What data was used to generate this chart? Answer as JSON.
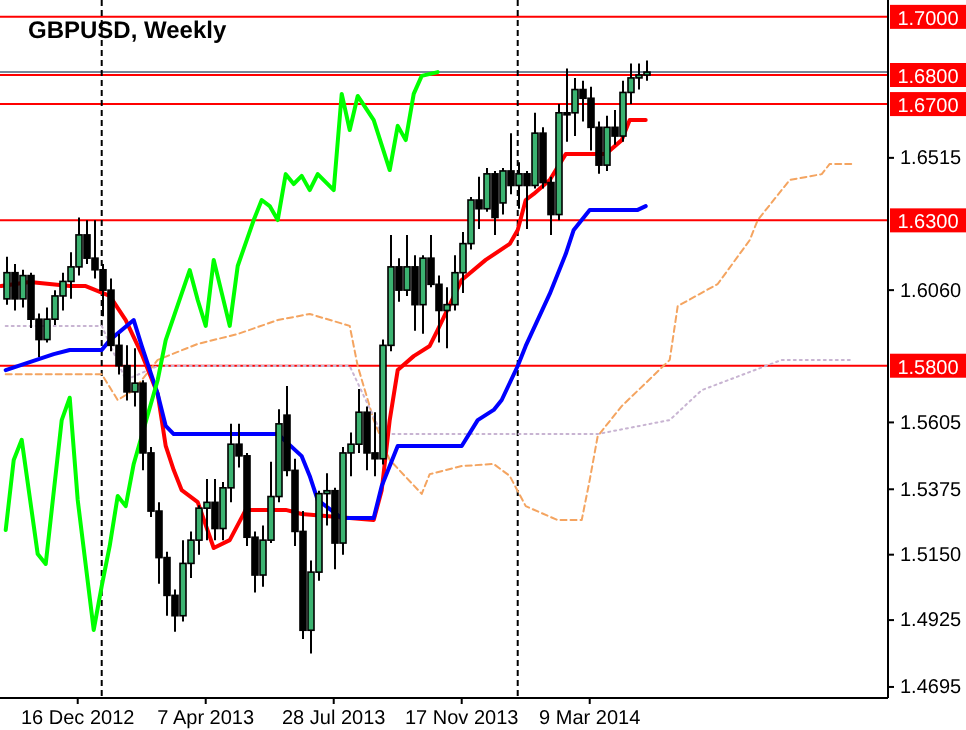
{
  "chart_data": {
    "type": "candlestick",
    "title": "GBPUSD, Weekly",
    "x": [
      "2012-10-14",
      "2012-10-21",
      "2012-10-28",
      "2012-11-04",
      "2012-11-11",
      "2012-11-18",
      "2012-11-25",
      "2012-12-02",
      "2012-12-09",
      "2012-12-16",
      "2012-12-23",
      "2012-12-30",
      "2013-01-06",
      "2013-01-13",
      "2013-01-20",
      "2013-01-27",
      "2013-02-03",
      "2013-02-10",
      "2013-02-17",
      "2013-02-24",
      "2013-03-03",
      "2013-03-10",
      "2013-03-17",
      "2013-03-24",
      "2013-03-31",
      "2013-04-07",
      "2013-04-14",
      "2013-04-21",
      "2013-04-28",
      "2013-05-05",
      "2013-05-12",
      "2013-05-19",
      "2013-05-26",
      "2013-06-02",
      "2013-06-09",
      "2013-06-16",
      "2013-06-23",
      "2013-06-30",
      "2013-07-07",
      "2013-07-14",
      "2013-07-21",
      "2013-07-28",
      "2013-08-04",
      "2013-08-11",
      "2013-08-18",
      "2013-08-25",
      "2013-09-01",
      "2013-09-08",
      "2013-09-15",
      "2013-09-22",
      "2013-09-29",
      "2013-10-06",
      "2013-10-13",
      "2013-10-20",
      "2013-10-27",
      "2013-11-03",
      "2013-11-10",
      "2013-11-17",
      "2013-11-24",
      "2013-12-01",
      "2013-12-08",
      "2013-12-15",
      "2013-12-22",
      "2013-12-29",
      "2014-01-05",
      "2014-01-12",
      "2014-01-19",
      "2014-01-26",
      "2014-02-02",
      "2014-02-09",
      "2014-02-16",
      "2014-02-23",
      "2014-03-02",
      "2014-03-09",
      "2014-03-16",
      "2014-03-23",
      "2014-03-30",
      "2014-04-06",
      "2014-04-13",
      "2014-04-20",
      "2014-04-27"
    ],
    "ohlc": [
      [
        1.603,
        1.6175,
        1.601,
        1.612
      ],
      [
        1.612,
        1.615,
        1.599,
        1.603
      ],
      [
        1.603,
        1.613,
        1.6,
        1.611
      ],
      [
        1.611,
        1.612,
        1.593,
        1.596
      ],
      [
        1.596,
        1.598,
        1.583,
        1.589
      ],
      [
        1.589,
        1.6,
        1.588,
        1.596
      ],
      [
        1.596,
        1.606,
        1.594,
        1.604
      ],
      [
        1.604,
        1.612,
        1.599,
        1.609
      ],
      [
        1.609,
        1.619,
        1.603,
        1.614
      ],
      [
        1.614,
        1.631,
        1.611,
        1.625
      ],
      [
        1.625,
        1.63,
        1.615,
        1.617
      ],
      [
        1.617,
        1.63,
        1.61,
        1.613
      ],
      [
        1.613,
        1.615,
        1.597,
        1.606
      ],
      [
        1.606,
        1.61,
        1.585,
        1.587
      ],
      [
        1.587,
        1.591,
        1.577,
        1.58
      ],
      [
        1.58,
        1.587,
        1.568,
        1.571
      ],
      [
        1.571,
        1.586,
        1.566,
        1.574
      ],
      [
        1.574,
        1.575,
        1.544,
        1.55
      ],
      [
        1.55,
        1.552,
        1.528,
        1.53
      ],
      [
        1.53,
        1.533,
        1.505,
        1.514
      ],
      [
        1.514,
        1.516,
        1.494,
        1.501
      ],
      [
        1.501,
        1.503,
        1.4885,
        1.494
      ],
      [
        1.494,
        1.52,
        1.492,
        1.512
      ],
      [
        1.512,
        1.523,
        1.507,
        1.52
      ],
      [
        1.52,
        1.532,
        1.515,
        1.531
      ],
      [
        1.531,
        1.541,
        1.52,
        1.533
      ],
      [
        1.533,
        1.541,
        1.52,
        1.524
      ],
      [
        1.524,
        1.54,
        1.52,
        1.538
      ],
      [
        1.538,
        1.56,
        1.533,
        1.553
      ],
      [
        1.553,
        1.56,
        1.545,
        1.549
      ],
      [
        1.549,
        1.55,
        1.518,
        1.521
      ],
      [
        1.521,
        1.523,
        1.502,
        1.508
      ],
      [
        1.508,
        1.525,
        1.504,
        1.52
      ],
      [
        1.52,
        1.547,
        1.519,
        1.535
      ],
      [
        1.535,
        1.565,
        1.533,
        1.56
      ],
      [
        1.563,
        1.573,
        1.542,
        1.544
      ],
      [
        1.544,
        1.548,
        1.518,
        1.523
      ],
      [
        1.523,
        1.53,
        1.486,
        1.489
      ],
      [
        1.489,
        1.513,
        1.481,
        1.509
      ],
      [
        1.509,
        1.537,
        1.506,
        1.536
      ],
      [
        1.536,
        1.543,
        1.525,
        1.537
      ],
      [
        1.537,
        1.538,
        1.51,
        1.519
      ],
      [
        1.519,
        1.552,
        1.515,
        1.55
      ],
      [
        1.55,
        1.557,
        1.542,
        1.553
      ],
      [
        1.553,
        1.572,
        1.55,
        1.564
      ],
      [
        1.564,
        1.566,
        1.544,
        1.55
      ],
      [
        1.55,
        1.564,
        1.542,
        1.548
      ],
      [
        1.548,
        1.589,
        1.546,
        1.587
      ],
      [
        1.587,
        1.625,
        1.585,
        1.614
      ],
      [
        1.614,
        1.617,
        1.602,
        1.606
      ],
      [
        1.606,
        1.625,
        1.604,
        1.614
      ],
      [
        1.614,
        1.618,
        1.592,
        1.601
      ],
      [
        1.601,
        1.618,
        1.591,
        1.617
      ],
      [
        1.617,
        1.625,
        1.607,
        1.608
      ],
      [
        1.608,
        1.611,
        1.588,
        1.599
      ],
      [
        1.599,
        1.607,
        1.586,
        1.601
      ],
      [
        1.601,
        1.618,
        1.599,
        1.612
      ],
      [
        1.612,
        1.626,
        1.605,
        1.622
      ],
      [
        1.622,
        1.638,
        1.62,
        1.637
      ],
      [
        1.637,
        1.645,
        1.627,
        1.634
      ],
      [
        1.634,
        1.648,
        1.633,
        1.646
      ],
      [
        1.646,
        1.647,
        1.625,
        1.631
      ],
      [
        1.636,
        1.648,
        1.632,
        1.647
      ],
      [
        1.647,
        1.66,
        1.639,
        1.642
      ],
      [
        1.642,
        1.65,
        1.634,
        1.646
      ],
      [
        1.646,
        1.647,
        1.627,
        1.642
      ],
      [
        1.642,
        1.667,
        1.641,
        1.66
      ],
      [
        1.66,
        1.662,
        1.641,
        1.643
      ],
      [
        1.643,
        1.645,
        1.625,
        1.632
      ],
      [
        1.632,
        1.67,
        1.63,
        1.667
      ],
      [
        1.667,
        1.6822,
        1.657,
        1.667
      ],
      [
        1.667,
        1.679,
        1.659,
        1.675
      ],
      [
        1.675,
        1.678,
        1.664,
        1.672
      ],
      [
        1.672,
        1.676,
        1.654,
        1.662
      ],
      [
        1.662,
        1.664,
        1.646,
        1.649
      ],
      [
        1.649,
        1.666,
        1.647,
        1.662
      ],
      [
        1.662,
        1.668,
        1.656,
        1.659
      ],
      [
        1.659,
        1.678,
        1.657,
        1.674
      ],
      [
        1.674,
        1.684,
        1.67,
        1.679
      ],
      [
        1.679,
        1.684,
        1.675,
        1.68
      ],
      [
        1.68,
        1.685,
        1.678,
        1.681
      ]
    ],
    "colors": [
      "#3cb371",
      "#000000",
      "#3cb371",
      "#000000",
      "#000000",
      "#3cb371",
      "#3cb371",
      "#3cb371",
      "#3cb371",
      "#3cb371",
      "#000000",
      "#000000",
      "#000000",
      "#000000",
      "#000000",
      "#000000",
      "#3cb371",
      "#000000",
      "#000000",
      "#000000",
      "#000000",
      "#000000",
      "#3cb371",
      "#3cb371",
      "#3cb371",
      "#3cb371",
      "#000000",
      "#3cb371",
      "#3cb371",
      "#000000",
      "#000000",
      "#000000",
      "#3cb371",
      "#3cb371",
      "#3cb371",
      "#000000",
      "#000000",
      "#000000",
      "#3cb371",
      "#3cb371",
      "#3cb371",
      "#000000",
      "#3cb371",
      "#3cb371",
      "#3cb371",
      "#000000",
      "#000000",
      "#3cb371",
      "#3cb371",
      "#000000",
      "#3cb371",
      "#000000",
      "#3cb371",
      "#000000",
      "#000000",
      "#3cb371",
      "#3cb371",
      "#3cb371",
      "#3cb371",
      "#000000",
      "#3cb371",
      "#000000",
      "#3cb371",
      "#000000",
      "#3cb371",
      "#000000",
      "#3cb371",
      "#000000",
      "#000000",
      "#3cb371",
      "#000000",
      "#3cb371",
      "#000000",
      "#000000",
      "#000000",
      "#3cb371",
      "#000000",
      "#3cb371",
      "#3cb371",
      "#3cb371",
      "#3cb371"
    ],
    "series": [
      {
        "type": "line",
        "color": "#f4a460",
        "line_style": "dashed",
        "x": [
          "2012-10-14",
          "2013-01-06",
          "2013-01-20",
          "2013-02-03",
          "2013-02-24",
          "2013-03-31",
          "2013-05-05",
          "2013-06-09",
          "2013-07-07",
          "2013-08-11",
          "2013-08-18",
          "2013-09-01",
          "2013-09-15",
          "2013-10-13",
          "2013-10-20",
          "2013-11-17",
          "2013-12-15",
          "2013-12-29",
          "2014-01-12",
          "2014-02-09",
          "2014-03-02",
          "2014-03-09",
          "2014-03-16",
          "2014-04-06",
          "2014-05-18",
          "2014-05-25",
          "2014-06-29",
          "2014-07-27",
          "2014-08-03",
          "2014-08-31",
          "2014-09-28",
          "2014-10-05",
          "2014-10-26"
        ],
        "values": [
          1.5771,
          1.5771,
          1.5682,
          1.5716,
          1.582,
          1.5875,
          1.5909,
          1.5957,
          1.5978,
          1.5937,
          1.5799,
          1.5613,
          1.5476,
          1.5359,
          1.5427,
          1.5455,
          1.5462,
          1.5421,
          1.5317,
          1.5269,
          1.5269,
          1.5407,
          1.5558,
          1.5661,
          1.582,
          1.6005,
          1.6081,
          1.6232,
          1.6301,
          1.6439,
          1.6459,
          1.6494,
          1.6494
        ]
      },
      {
        "type": "line",
        "color": "#c8b4d2",
        "line_style": "dotted",
        "x": [
          "2012-10-14",
          "2013-01-06",
          "2013-01-27",
          "2013-02-24",
          "2013-08-11",
          "2013-09-08",
          "2014-03-16",
          "2014-05-18",
          "2014-06-15",
          "2014-08-24",
          "2014-10-26"
        ],
        "values": [
          1.5937,
          1.5937,
          1.5751,
          1.5799,
          1.5799,
          1.5565,
          1.5565,
          1.5613,
          1.5716,
          1.582,
          1.582
        ]
      },
      {
        "type": "line",
        "color": "#ff0000",
        "x": [
          "2012-10-10",
          "2012-11-04",
          "2012-12-09",
          "2012-12-23",
          "2013-01-13",
          "2013-01-27",
          "2013-02-10",
          "2013-02-24",
          "2013-03-03",
          "2013-03-10",
          "2013-03-17",
          "2013-03-31",
          "2013-04-14",
          "2013-04-28",
          "2013-05-12",
          "2013-06-16",
          "2013-06-30",
          "2013-09-01",
          "2013-09-08",
          "2013-09-15",
          "2013-09-22",
          "2013-10-06",
          "2013-10-20",
          "2013-10-27",
          "2013-11-17",
          "2013-12-08",
          "2013-12-29",
          "2014-01-05",
          "2014-01-12",
          "2014-01-19",
          "2014-02-02",
          "2014-02-16",
          "2014-03-23",
          "2014-04-06",
          "2014-04-13",
          "2014-04-27"
        ],
        "values": [
          1.6074,
          1.6088,
          1.6074,
          1.6074,
          1.604,
          1.5957,
          1.584,
          1.5703,
          1.5524,
          1.5441,
          1.5372,
          1.5331,
          1.5173,
          1.52,
          1.5304,
          1.5304,
          1.529,
          1.5269,
          1.5372,
          1.5613,
          1.5785,
          1.5833,
          1.5868,
          1.5923,
          1.6095,
          1.6164,
          1.6219,
          1.6267,
          1.637,
          1.6391,
          1.6439,
          1.6528,
          1.6528,
          1.6576,
          1.6645,
          1.6645
        ]
      },
      {
        "type": "line",
        "color": "#0000ff",
        "x": [
          "2012-10-14",
          "2012-11-25",
          "2012-12-09",
          "2013-01-06",
          "2013-01-13",
          "2013-02-03",
          "2013-02-10",
          "2013-02-24",
          "2013-03-03",
          "2013-03-10",
          "2013-06-09",
          "2013-06-30",
          "2013-07-07",
          "2013-07-14",
          "2013-08-04",
          "2013-09-01",
          "2013-09-08",
          "2013-09-15",
          "2013-09-22",
          "2013-11-17",
          "2013-12-01",
          "2013-12-15",
          "2013-12-22",
          "2014-01-05",
          "2014-01-12",
          "2014-02-02",
          "2014-02-16",
          "2014-02-23",
          "2014-03-09",
          "2014-04-20",
          "2014-04-27"
        ],
        "values": [
          1.5785,
          1.584,
          1.5854,
          1.5854,
          1.5888,
          1.5957,
          1.5868,
          1.5703,
          1.5593,
          1.5565,
          1.5565,
          1.5489,
          1.5421,
          1.5338,
          1.5276,
          1.5276,
          1.5386,
          1.5455,
          1.5524,
          1.5524,
          1.5613,
          1.5648,
          1.5682,
          1.5799,
          1.5868,
          1.6047,
          1.6184,
          1.6267,
          1.6336,
          1.6336,
          1.6349
        ]
      },
      {
        "type": "line",
        "color": "#00ff00",
        "x": [
          "2012-10-14",
          "2012-10-21",
          "2012-10-28",
          "2012-11-11",
          "2012-11-18",
          "2012-12-02",
          "2012-12-09",
          "2012-12-16",
          "2012-12-30",
          "2013-01-06",
          "2013-01-13",
          "2013-01-20",
          "2013-01-27",
          "2013-02-03",
          "2013-02-10",
          "2013-02-24",
          "2013-03-03",
          "2013-03-24",
          "2013-03-31",
          "2013-04-07",
          "2013-04-14",
          "2013-04-28",
          "2013-05-05",
          "2013-05-19",
          "2013-05-26",
          "2013-06-02",
          "2013-06-09",
          "2013-06-16",
          "2013-06-23",
          "2013-06-30",
          "2013-07-07",
          "2013-07-14",
          "2013-07-28",
          "2013-08-04",
          "2013-08-11",
          "2013-08-18",
          "2013-09-01",
          "2013-09-15",
          "2013-09-22",
          "2013-09-29",
          "2013-10-06",
          "2013-10-13",
          "2013-10-27"
        ],
        "values": [
          1.5235,
          1.5476,
          1.5545,
          1.5152,
          1.5118,
          1.5613,
          1.569,
          1.5338,
          1.4891,
          1.5042,
          1.518,
          1.5352,
          1.5317,
          1.5462,
          1.5558,
          1.5751,
          1.5888,
          1.6129,
          1.6026,
          1.5937,
          1.6164,
          1.5937,
          1.6143,
          1.6301,
          1.637,
          1.6349,
          1.6301,
          1.6459,
          1.6425,
          1.6453,
          1.6404,
          1.6459,
          1.6404,
          1.6735,
          1.6611,
          1.6728,
          1.6645,
          1.6473,
          1.6625,
          1.6576,
          1.6735,
          1.6797,
          1.681
        ]
      }
    ],
    "xlim": [
      "2012-10-09",
      "2014-11-25"
    ],
    "xticks": [
      {
        "value": "2012-12-16",
        "label": "16 Dec 2012"
      },
      {
        "value": "2013-04-07",
        "label": "7 Apr 2013"
      },
      {
        "value": "2013-07-28",
        "label": "28 Jul 2013"
      },
      {
        "value": "2013-11-17",
        "label": "17 Nov 2013"
      },
      {
        "value": "2014-03-09",
        "label": "9 Mar 2014"
      }
    ],
    "ylim": [
      1.4657,
      1.7058
    ],
    "yticks": [
      {
        "value": 1.4695,
        "label": "1.4695"
      },
      {
        "value": 1.4925,
        "label": "1.4925"
      },
      {
        "value": 1.515,
        "label": "1.5150"
      },
      {
        "value": 1.5375,
        "label": "1.5375"
      },
      {
        "value": 1.5605,
        "label": "1.5605"
      },
      {
        "value": 1.606,
        "label": "1.6060"
      },
      {
        "value": 1.6515,
        "label": "1.6515"
      }
    ],
    "ref_lines": [
      {
        "axis": "y",
        "value": 1.7,
        "label": "1.7000",
        "color": "#ff0000"
      },
      {
        "axis": "y",
        "value": 1.68,
        "label": "1.6800",
        "color": "#ff0000"
      },
      {
        "axis": "y",
        "value": 1.67,
        "label": "1.6700",
        "color": "#ff0000"
      },
      {
        "axis": "y",
        "value": 1.63,
        "label": "1.6300",
        "color": "#ff0000"
      },
      {
        "axis": "y",
        "value": 1.58,
        "label": "1.5800",
        "color": "#ff0000"
      },
      {
        "axis": "y",
        "value": 1.681,
        "color": "#778899"
      },
      {
        "axis": "x",
        "value": "2013-01-06",
        "color": "#000000",
        "line_style": "dashed"
      },
      {
        "axis": "x",
        "value": "2014-01-05",
        "color": "#000000",
        "line_style": "dashed"
      }
    ]
  }
}
